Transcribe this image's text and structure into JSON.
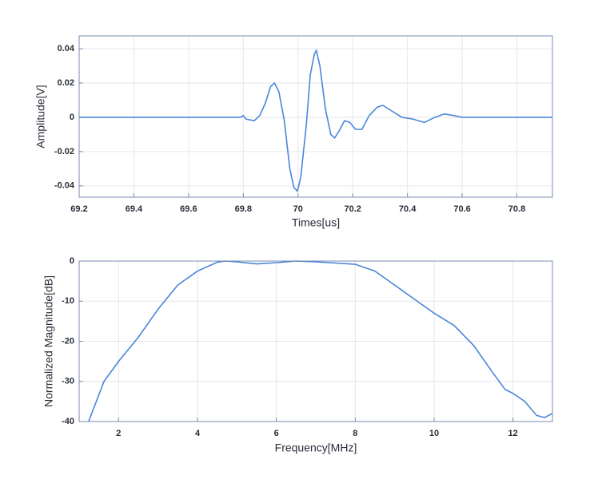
{
  "chart_data": [
    {
      "type": "line",
      "x_label": "Times[us]",
      "y_label": "Amplitude[V]",
      "grid": true,
      "xlim": [
        69.2,
        70.93
      ],
      "ylim": [
        -0.0466,
        0.0475
      ],
      "xticks": [
        69.2,
        69.4,
        69.6,
        69.8,
        70,
        70.2,
        70.4,
        70.6,
        70.8
      ],
      "yticks": [
        -0.04,
        -0.02,
        0,
        0.02,
        0.04
      ],
      "series": [
        {
          "color": "#4a86d8",
          "x": [
            69.2,
            69.79,
            69.8,
            69.81,
            69.84,
            69.86,
            69.88,
            69.9,
            69.914,
            69.93,
            69.95,
            69.97,
            69.985,
            69.998,
            70.01,
            70.03,
            70.045,
            70.06,
            70.067,
            70.08,
            70.1,
            70.12,
            70.134,
            70.15,
            70.17,
            70.19,
            70.21,
            70.234,
            70.26,
            70.29,
            70.31,
            70.34,
            70.38,
            70.42,
            70.462,
            70.5,
            70.535,
            70.57,
            70.6,
            70.667,
            70.93
          ],
          "values": [
            0,
            0,
            0.001,
            -0.001,
            -0.002,
            0.001,
            0.008,
            0.018,
            0.02,
            0.015,
            -0.002,
            -0.03,
            -0.041,
            -0.043,
            -0.035,
            -0.005,
            0.025,
            0.037,
            0.039,
            0.03,
            0.005,
            -0.01,
            -0.012,
            -0.008,
            -0.002,
            -0.003,
            -0.007,
            -0.007,
            0.001,
            0.006,
            0.007,
            0.004,
            0,
            -0.001,
            -0.003,
            0,
            0.002,
            0.001,
            0,
            0,
            0
          ]
        }
      ]
    },
    {
      "type": "line",
      "x_label": "Frequency[MHz]",
      "y_label": "Normalized Magnitude[dB]",
      "grid": true,
      "xlim": [
        1,
        13
      ],
      "ylim": [
        -40,
        0
      ],
      "xticks": [
        2,
        4,
        6,
        8,
        10,
        12
      ],
      "yticks": [
        -40,
        -30,
        -20,
        -10,
        0
      ],
      "series": [
        {
          "color": "#4a86d8",
          "x": [
            1.24,
            1.63,
            2,
            2.5,
            3,
            3.5,
            4,
            4.5,
            4.7,
            5,
            5.5,
            6,
            6.5,
            7,
            7.5,
            8,
            8.5,
            9,
            9.5,
            10,
            10.5,
            11,
            11.5,
            11.8,
            12,
            12.3,
            12.6,
            12.8,
            13
          ],
          "values": [
            -40,
            -30,
            -25,
            -19,
            -12,
            -6,
            -2.5,
            -0.3,
            0,
            -0.2,
            -0.7,
            -0.4,
            0,
            -0.2,
            -0.5,
            -0.8,
            -2.5,
            -6,
            -9.5,
            -13,
            -16,
            -21,
            -28,
            -32,
            -33,
            -35,
            -38.5,
            -39,
            -38
          ]
        }
      ]
    }
  ]
}
